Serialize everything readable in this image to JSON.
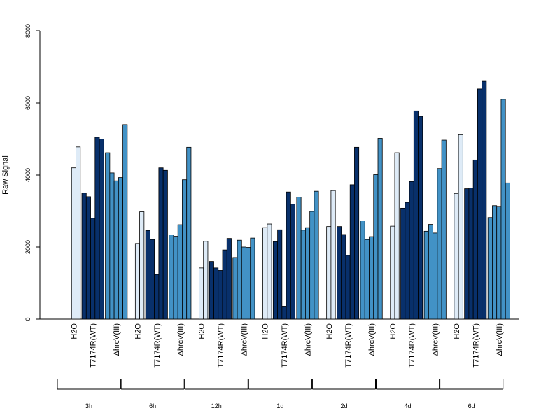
{
  "chart_data": {
    "type": "bar",
    "title": "",
    "xlabel": "",
    "ylabel": "Raw Signal",
    "ylim": [
      0,
      8000
    ],
    "y_ticks": [
      0,
      2000,
      4000,
      6000,
      8000
    ],
    "grid": false,
    "legend": "none",
    "group_labels": [
      "H2O",
      "T7174R(WT)",
      "ΔhrcV(III)"
    ],
    "colors": {
      "H2O": "#deebf7",
      "T7174R(WT)": "#08306b",
      "ΔhrcV(III)": "#4292c6"
    },
    "timepoints": [
      {
        "label": "3h",
        "series": [
          {
            "group": "H2O",
            "values": [
              0,
              4200,
              4780
            ]
          },
          {
            "group": "T7174R(WT)",
            "values": [
              3500,
              3400,
              2800,
              5050,
              5000
            ]
          },
          {
            "group": "ΔhrcV(III)",
            "values": [
              4620,
              4060,
              3840,
              3930,
              5400
            ]
          }
        ]
      },
      {
        "label": "6h",
        "series": [
          {
            "group": "H2O",
            "values": [
              0,
              2100,
              2980
            ]
          },
          {
            "group": "T7174R(WT)",
            "values": [
              2460,
              2210,
              1240,
              4200,
              4130
            ]
          },
          {
            "group": "ΔhrcV(III)",
            "values": [
              2340,
              2300,
              2620,
              3870,
              4770
            ]
          }
        ]
      },
      {
        "label": "12h",
        "series": [
          {
            "group": "H2O",
            "values": [
              0,
              1420,
              2160
            ]
          },
          {
            "group": "T7174R(WT)",
            "values": [
              1600,
              1420,
              1350,
              1920,
              2240
            ]
          },
          {
            "group": "ΔhrcV(III)",
            "values": [
              1710,
              2190,
              2000,
              1990,
              2250
            ]
          }
        ]
      },
      {
        "label": "1d",
        "series": [
          {
            "group": "H2O",
            "values": [
              0,
              2540,
              2640
            ]
          },
          {
            "group": "T7174R(WT)",
            "values": [
              2150,
              2480,
              360,
              3530,
              3190
            ]
          },
          {
            "group": "ΔhrcV(III)",
            "values": [
              3390,
              2470,
              2540,
              2990,
              3550
            ]
          }
        ]
      },
      {
        "label": "2d",
        "series": [
          {
            "group": "H2O",
            "values": [
              0,
              2570,
              3570
            ]
          },
          {
            "group": "T7174R(WT)",
            "values": [
              2570,
              2350,
              1770,
              3730,
              4770
            ]
          },
          {
            "group": "ΔhrcV(III)",
            "values": [
              2730,
              2210,
              2290,
              4010,
              5020
            ]
          }
        ]
      },
      {
        "label": "4d",
        "series": [
          {
            "group": "H2O",
            "values": [
              0,
              2580,
              4620
            ]
          },
          {
            "group": "T7174R(WT)",
            "values": [
              3080,
              3240,
              3820,
              5780,
              5630
            ]
          },
          {
            "group": "ΔhrcV(III)",
            "values": [
              2440,
              2630,
              2390,
              4180,
              4970
            ]
          }
        ]
      },
      {
        "label": "6d",
        "series": [
          {
            "group": "H2O",
            "values": [
              0,
              3490,
              5120
            ]
          },
          {
            "group": "T7174R(WT)",
            "values": [
              3620,
              3640,
              4420,
              6390,
              6600
            ]
          },
          {
            "group": "ΔhrcV(III)",
            "values": [
              2820,
              3150,
              3130,
              6100,
              3780
            ]
          }
        ]
      }
    ]
  }
}
